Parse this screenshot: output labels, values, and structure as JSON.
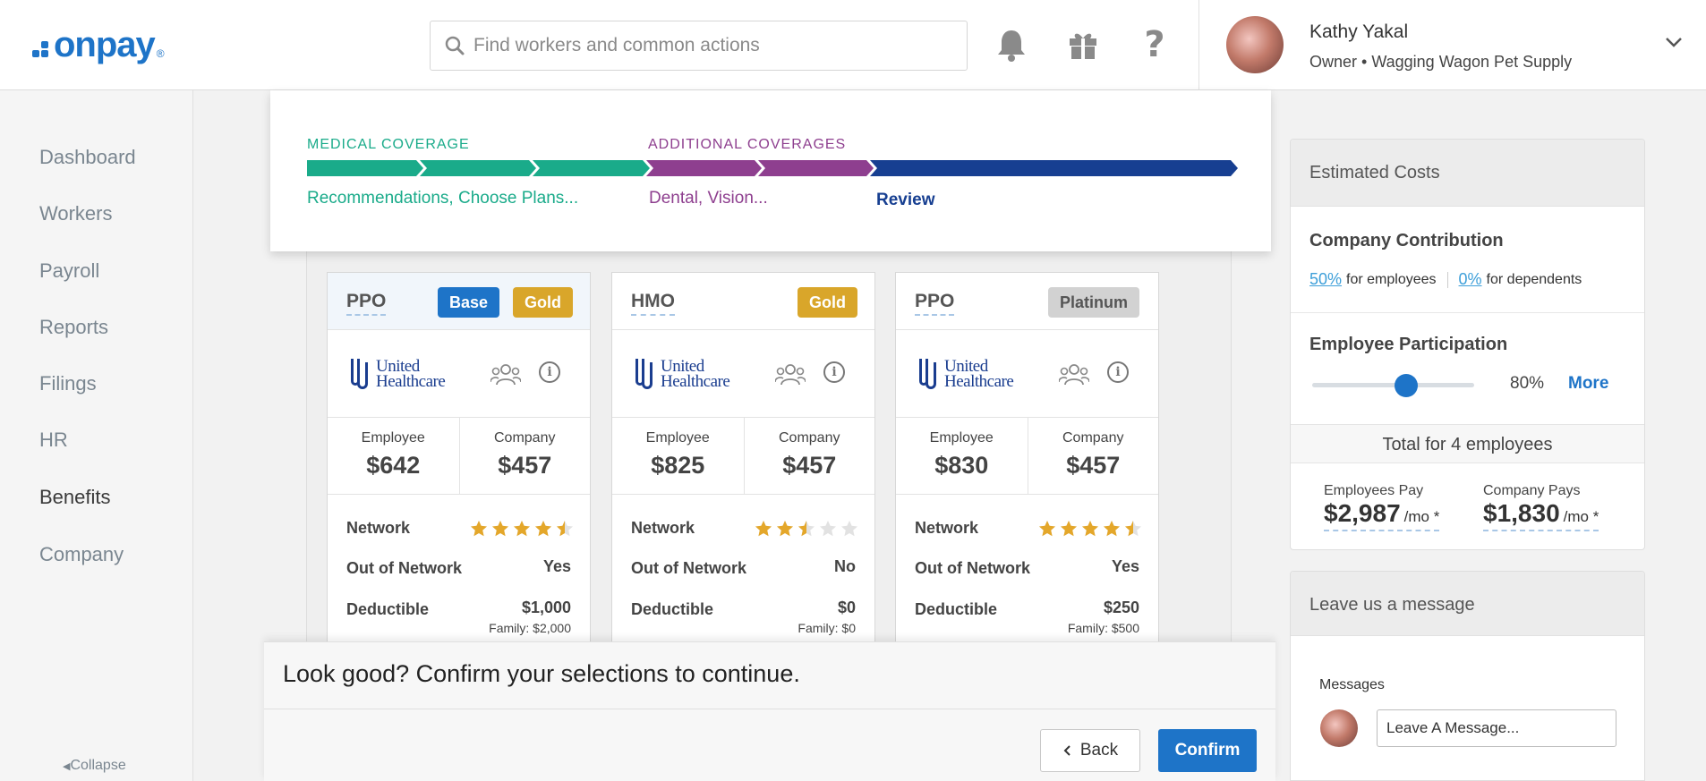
{
  "header": {
    "logo_text": "onpay",
    "logo_mark": "®",
    "search_placeholder": "Find workers and common actions",
    "user": {
      "name": "Kathy Yakal",
      "role": "Owner • Wagging Wagon Pet Supply"
    }
  },
  "sidebar": {
    "items": [
      {
        "label": "Dashboard"
      },
      {
        "label": "Workers"
      },
      {
        "label": "Payroll"
      },
      {
        "label": "Reports"
      },
      {
        "label": "Filings"
      },
      {
        "label": "HR"
      },
      {
        "label": "Benefits"
      },
      {
        "label": "Company"
      }
    ],
    "active": "Benefits",
    "collapse_label": "Collapse"
  },
  "stepper": {
    "steps": [
      {
        "label": "MEDICAL COVERAGE",
        "sub": "Recommendations, Choose Plans...",
        "color": "#1aab8a"
      },
      {
        "label": "ADDITIONAL COVERAGES",
        "sub": "Dental, Vision...",
        "color": "#8e3f8f"
      },
      {
        "label": "",
        "sub": "Review",
        "color": "#173f91"
      }
    ]
  },
  "plans": [
    {
      "type": "PPO",
      "badges": [
        "Base",
        "Gold"
      ],
      "carrier": "United Healthcare",
      "employee_label": "Employee",
      "employee_cost": "$642",
      "company_label": "Company",
      "company_cost": "$457",
      "network_label": "Network",
      "network_rating": 4.5,
      "oon_label": "Out of Network",
      "oon_value": "Yes",
      "deductible_label": "Deductible",
      "deductible": "$1,000",
      "deductible_family": "Family: $2,000"
    },
    {
      "type": "HMO",
      "badges": [
        "Gold"
      ],
      "carrier": "United Healthcare",
      "employee_label": "Employee",
      "employee_cost": "$825",
      "company_label": "Company",
      "company_cost": "$457",
      "network_label": "Network",
      "network_rating": 2.5,
      "oon_label": "Out of Network",
      "oon_value": "No",
      "deductible_label": "Deductible",
      "deductible": "$0",
      "deductible_family": "Family: $0"
    },
    {
      "type": "PPO",
      "badges": [
        "Platinum"
      ],
      "carrier": "United Healthcare",
      "employee_label": "Employee",
      "employee_cost": "$830",
      "company_label": "Company",
      "company_cost": "$457",
      "network_label": "Network",
      "network_rating": 4.5,
      "oon_label": "Out of Network",
      "oon_value": "Yes",
      "deductible_label": "Deductible",
      "deductible": "$250",
      "deductible_family": "Family: $500"
    }
  ],
  "confirm": {
    "title": "Look good? Confirm your selections to continue.",
    "back_label": "Back",
    "confirm_label": "Confirm"
  },
  "estimated_costs": {
    "title": "Estimated Costs",
    "contribution_title": "Company Contribution",
    "employee_pct": "50%",
    "employee_pct_suffix": "for employees",
    "dependent_pct": "0%",
    "dependent_pct_suffix": "for dependents",
    "participation_title": "Employee Participation",
    "participation_value": 80,
    "participation_label": "80%",
    "more_label": "More",
    "total_label": "Total for 4 employees",
    "employees_pay_label": "Employees Pay",
    "employees_pay": "$2,987",
    "company_pays_label": "Company Pays",
    "company_pays": "$1,830",
    "per_month": "/mo *"
  },
  "message": {
    "title": "Leave us a message",
    "label": "Messages",
    "placeholder": "Leave A Message..."
  },
  "colors": {
    "brand": "#1e74c8",
    "medical": "#1aab8a",
    "additional": "#8e3f8f",
    "review": "#173f91",
    "gold": "#d9a62a",
    "star": "#e4a72a"
  }
}
